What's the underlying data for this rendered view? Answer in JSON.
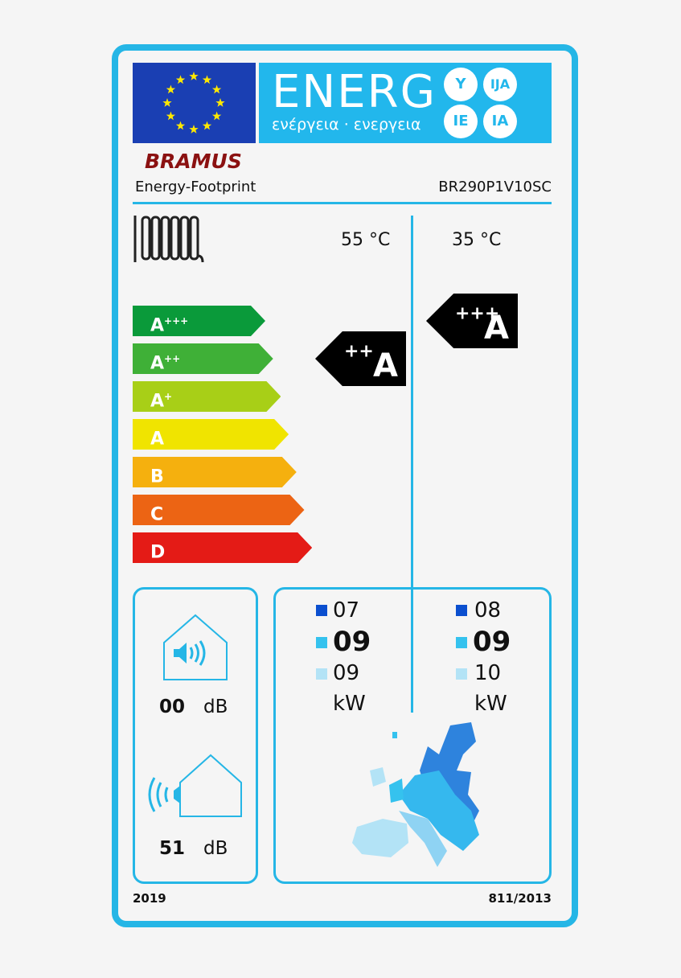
{
  "header": {
    "energy_word": "ENERG",
    "greek": "ενέργεια · ενεργεια",
    "suffixes": [
      "Y",
      "IJA",
      "IE",
      "IA"
    ]
  },
  "brand": {
    "logo": "BRAMUS",
    "supplier": "Energy-Footprint",
    "model": "BR290P1V10SC"
  },
  "temps": {
    "col1": "55 °C",
    "col2": "35 °C"
  },
  "scale": [
    {
      "label": "A",
      "sup": "+++",
      "color": "#0a9a3a"
    },
    {
      "label": "A",
      "sup": "++",
      "color": "#3fb037"
    },
    {
      "label": "A",
      "sup": "+",
      "color": "#a8cf17"
    },
    {
      "label": "A",
      "sup": "",
      "color": "#f0e400"
    },
    {
      "label": "B",
      "sup": "",
      "color": "#f5b00e"
    },
    {
      "label": "C",
      "sup": "",
      "color": "#ec6414"
    },
    {
      "label": "D",
      "sup": "",
      "color": "#e41b16"
    }
  ],
  "rating_55": {
    "label": "A",
    "sup": "++"
  },
  "rating_35": {
    "label": "A",
    "sup": "+++"
  },
  "noise": {
    "indoor_value": "00",
    "indoor_unit": "dB",
    "outdoor_value": "51",
    "outdoor_unit": "dB"
  },
  "power": {
    "col1": {
      "cold": "07",
      "average": "09",
      "warm": "09",
      "unit": "kW"
    },
    "col2": {
      "cold": "08",
      "average": "09",
      "warm": "10",
      "unit": "kW"
    },
    "zone_colors": {
      "cold": "#0b4fcf",
      "average": "#35c2ee",
      "warm": "#b3e3f6"
    }
  },
  "footer": {
    "year": "2019",
    "regulation": "811/2013"
  }
}
